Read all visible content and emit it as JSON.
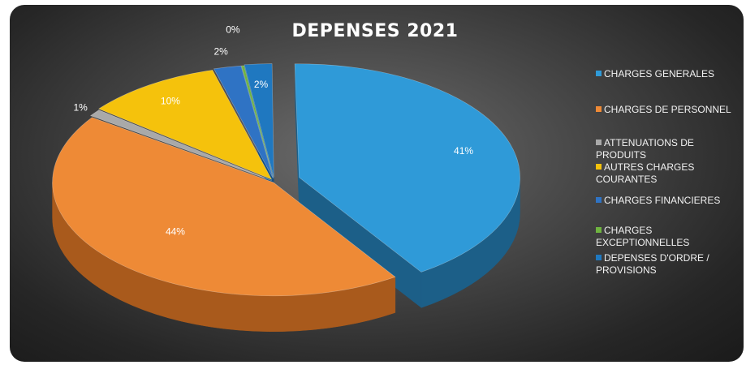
{
  "chart_data": {
    "type": "pie",
    "title": "DEPENSES 2021",
    "legend_position": "right",
    "slices": [
      {
        "label": "CHARGES GENERALES",
        "value": 41,
        "display": "41%",
        "color": "#2f9ad8",
        "side_color": "#1c5f88",
        "label_color": "#ffffff"
      },
      {
        "label": "CHARGES DE PERSONNEL",
        "value": 44,
        "display": "44%",
        "color": "#ee8a36",
        "side_color": "#a95a1c",
        "label_color": "#ffffff"
      },
      {
        "label": "ATTENUATIONS DE PRODUITS",
        "value": 1,
        "display": "1%",
        "color": "#a9a9a9",
        "side_color": "#6e6e6e",
        "label_color": "#ffffff"
      },
      {
        "label": "AUTRES CHARGES COURANTES",
        "value": 10,
        "display": "10%",
        "color": "#f5c20c",
        "side_color": "#a88306",
        "label_color": "#ffffff"
      },
      {
        "label": "CHARGES FINANCIERES",
        "value": 2,
        "display": "2%",
        "color": "#2f73c4",
        "side_color": "#1d4a80",
        "label_color": "#ffffff"
      },
      {
        "label": "CHARGES EXCEPTIONNELLES",
        "value": 0,
        "display": "0%",
        "color": "#6fb440",
        "side_color": "#477428",
        "label_color": "#ffffff"
      },
      {
        "label": "DEPENSES D'ORDRE / PROVISIONS",
        "value": 2,
        "display": "2%",
        "color": "#1f78c0",
        "side_color": "#144f80",
        "label_color": "#ffffff"
      }
    ]
  }
}
